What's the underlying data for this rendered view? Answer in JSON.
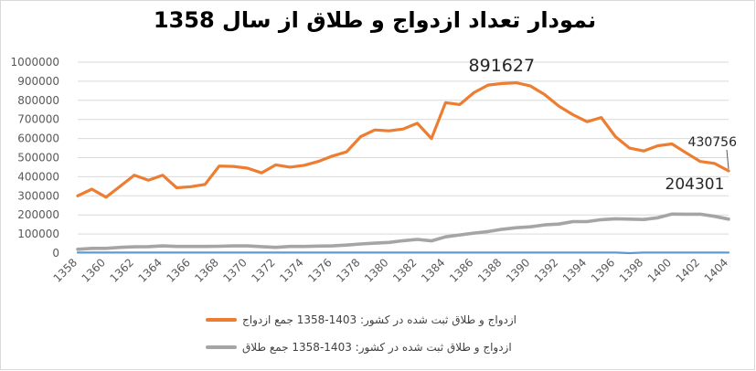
{
  "chart_data": {
    "type": "line",
    "title": "نمودار تعداد  ازدواج و طلاق از سال 1358",
    "xlabel": "",
    "ylabel": "",
    "ylim": [
      0,
      1000000
    ],
    "yticks": [
      0,
      100000,
      200000,
      300000,
      400000,
      500000,
      600000,
      700000,
      800000,
      900000,
      1000000
    ],
    "x": [
      1358,
      1359,
      1360,
      1361,
      1362,
      1363,
      1364,
      1365,
      1366,
      1367,
      1368,
      1369,
      1370,
      1371,
      1372,
      1373,
      1374,
      1375,
      1376,
      1377,
      1378,
      1379,
      1380,
      1381,
      1382,
      1383,
      1384,
      1385,
      1386,
      1387,
      1388,
      1389,
      1390,
      1391,
      1392,
      1393,
      1394,
      1395,
      1396,
      1397,
      1398,
      1399,
      1400,
      1401,
      1402,
      1403,
      1404
    ],
    "xtick_labels": [
      "1358",
      "1360",
      "1362",
      "1364",
      "1366",
      "1368",
      "1370",
      "1372",
      "1374",
      "1376",
      "1378",
      "1380",
      "1382",
      "1384",
      "1386",
      "1388",
      "1390",
      "1392",
      "1394",
      "1396",
      "1398",
      "1400",
      "1402",
      "1404"
    ],
    "grid": true,
    "legend_position": "bottom",
    "series": [
      {
        "name": "ازدواج و طلاق ثبت شده در کشور: 1403-1358 جمع ازدواج",
        "color": "#ED7D31",
        "values": [
          300000,
          335000,
          293000,
          350000,
          408000,
          382000,
          408000,
          342000,
          348000,
          360000,
          456000,
          454000,
          445000,
          420000,
          462000,
          450000,
          460000,
          480000,
          508000,
          530000,
          610000,
          645000,
          640000,
          650000,
          680000,
          600000,
          788000,
          778000,
          840000,
          880000,
          888000,
          891627,
          875000,
          830000,
          770000,
          725000,
          688000,
          710000,
          610000,
          550000,
          535000,
          562000,
          572000,
          525000,
          480000,
          470000,
          430756
        ]
      },
      {
        "name": "ازدواج و طلاق ثبت شده در کشور: 1403-1358 جمع طلاق",
        "color": "#A5A5A5",
        "values": [
          20000,
          25000,
          25000,
          30000,
          33000,
          34000,
          38000,
          35000,
          35000,
          35000,
          36000,
          38000,
          38000,
          34000,
          30000,
          35000,
          35000,
          37000,
          38000,
          42000,
          48000,
          52000,
          56000,
          65000,
          72000,
          64000,
          85000,
          95000,
          105000,
          113000,
          125000,
          133000,
          138000,
          148000,
          152000,
          165000,
          165000,
          175000,
          180000,
          178000,
          176000,
          185000,
          204301,
          204000,
          204000,
          193000,
          178000
        ]
      },
      {
        "name": "",
        "color": "#5B9BD5",
        "values": [
          3000,
          3000,
          3000,
          3000,
          3000,
          3000,
          3000,
          3000,
          3000,
          3000,
          3000,
          3000,
          3000,
          3000,
          3000,
          3000,
          3000,
          3000,
          3000,
          3000,
          3000,
          3000,
          3000,
          3000,
          3000,
          3000,
          3000,
          3000,
          3000,
          3000,
          3000,
          3000,
          3000,
          3000,
          3000,
          3000,
          3000,
          3000,
          3000,
          0,
          3000,
          3000,
          3000,
          3000,
          3000,
          3000,
          3000
        ]
      }
    ],
    "annotations": [
      {
        "text": "891627",
        "series": 0,
        "x": 1389
      },
      {
        "text": "430756",
        "series": 0,
        "x": 1404
      },
      {
        "text": "204301",
        "series": 1,
        "x": 1400
      }
    ]
  }
}
